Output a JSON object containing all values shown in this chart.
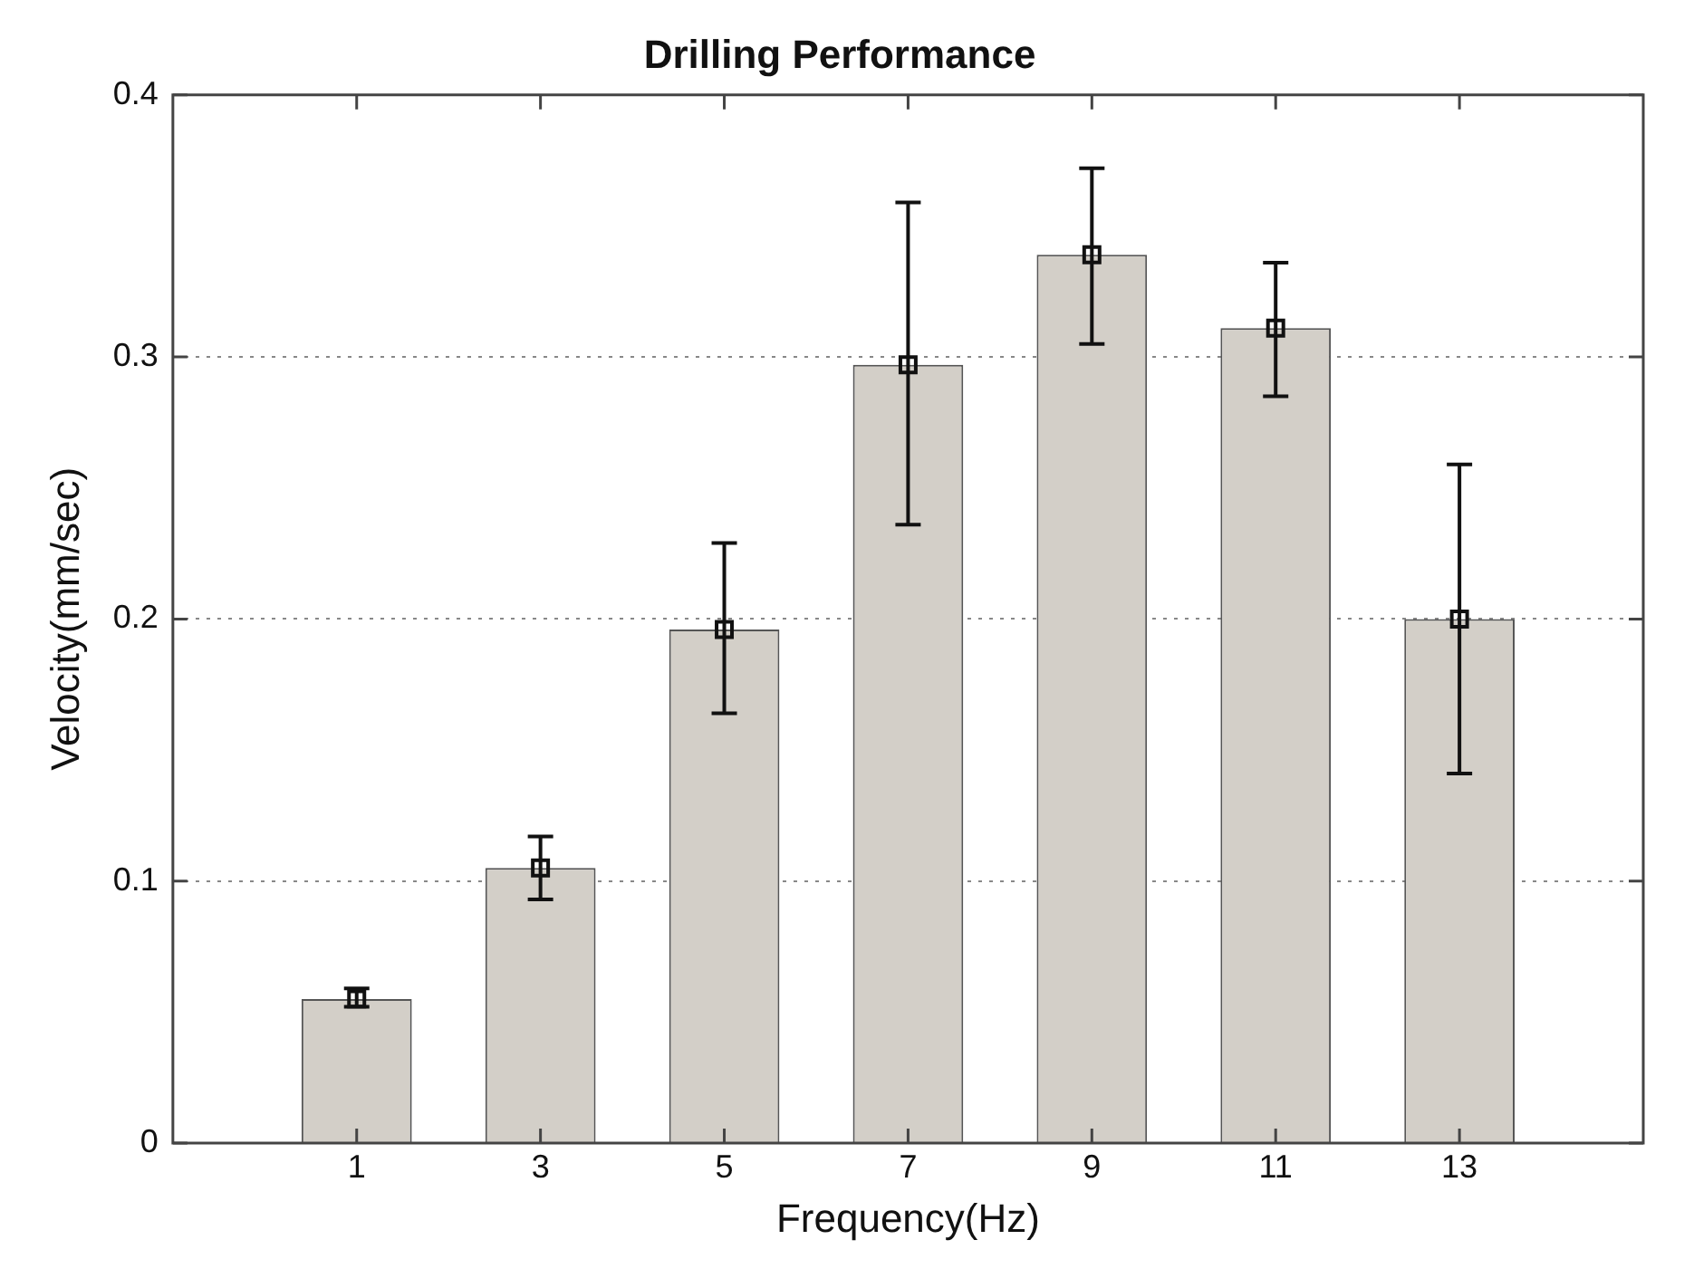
{
  "chart_data": {
    "type": "bar",
    "title": "Drilling Performance",
    "xlabel": "Frequency(Hz)",
    "ylabel": "Velocity(mm/sec)",
    "x": [
      1,
      3,
      5,
      7,
      9,
      11,
      13
    ],
    "series": [
      {
        "color": "#d3cfc8",
        "values": [
          0.055,
          0.105,
          0.196,
          0.297,
          0.339,
          0.311,
          0.2
        ],
        "errors": [
          [
            0.052,
            0.059
          ],
          [
            0.093,
            0.117
          ],
          [
            0.164,
            0.229
          ],
          [
            0.236,
            0.359
          ],
          [
            0.305,
            0.372
          ],
          [
            0.285,
            0.336
          ],
          [
            0.141,
            0.259
          ]
        ]
      },
      {
        "type": "scatter",
        "color": "#111111",
        "marker": "square",
        "values": [
          0.055,
          0.105,
          0.196,
          0.297,
          0.339,
          0.311,
          0.2
        ]
      }
    ],
    "xlim": [
      -1,
      15
    ],
    "xticks": [
      1,
      3,
      5,
      7,
      9,
      11,
      13
    ],
    "ylim": [
      0,
      0.4
    ],
    "yticks": [
      0,
      0.1,
      0.2,
      0.3,
      0.4
    ],
    "grid": "y",
    "legend": false
  }
}
